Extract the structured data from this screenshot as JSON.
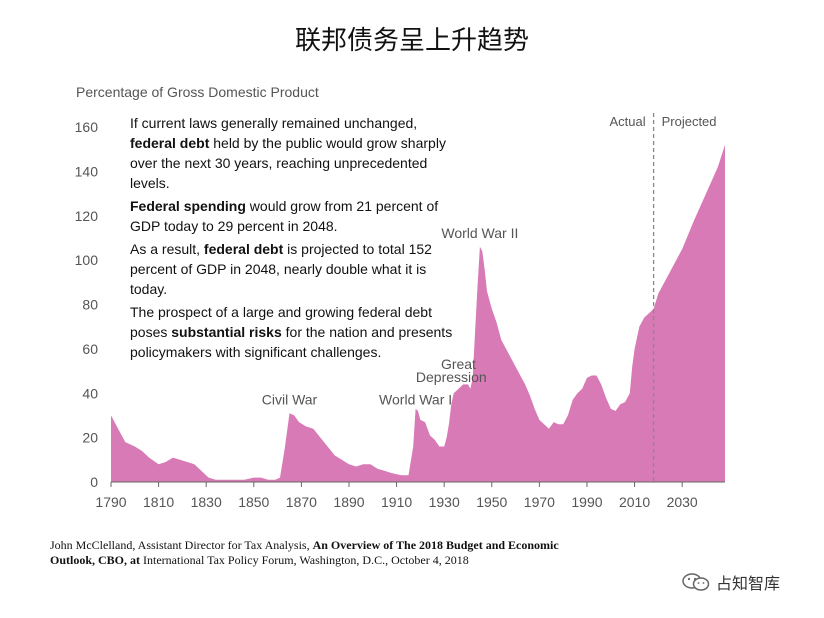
{
  "page_title": "联邦债务呈上升趋势",
  "chart_data": {
    "type": "area",
    "ylabel": "Percentage of Gross Domestic Product",
    "ylim": [
      0,
      160
    ],
    "xlim": [
      1790,
      2048
    ],
    "yticks": [
      0,
      20,
      40,
      60,
      80,
      100,
      120,
      140,
      160
    ],
    "xticks": [
      1790,
      1810,
      1830,
      1850,
      1870,
      1890,
      1910,
      1930,
      1950,
      1970,
      1990,
      2010,
      2030
    ],
    "color": "#d87ab6",
    "divider_year": 2018,
    "divider_labels": {
      "left": "Actual",
      "right": "Projected"
    },
    "annotations": [
      {
        "text": "Civil War",
        "x": 1865,
        "y": 35
      },
      {
        "text": "World War I",
        "x": 1918,
        "y": 35
      },
      {
        "text": "Great",
        "x": 1936,
        "y": 51
      },
      {
        "text": "Depression",
        "x": 1933,
        "y": 45
      },
      {
        "text": "World War II",
        "x": 1945,
        "y": 110
      }
    ],
    "x": [
      1790,
      1793,
      1796,
      1800,
      1803,
      1806,
      1810,
      1813,
      1816,
      1819,
      1822,
      1825,
      1828,
      1831,
      1834,
      1837,
      1840,
      1843,
      1846,
      1850,
      1853,
      1856,
      1859,
      1861,
      1863,
      1865,
      1867,
      1869,
      1872,
      1875,
      1878,
      1881,
      1884,
      1887,
      1890,
      1893,
      1896,
      1899,
      1902,
      1905,
      1908,
      1912,
      1915,
      1917,
      1918,
      1919,
      1920,
      1922,
      1924,
      1926,
      1928,
      1929,
      1930,
      1931,
      1932,
      1933,
      1934,
      1936,
      1938,
      1940,
      1941,
      1942,
      1943,
      1944,
      1945,
      1946,
      1947,
      1948,
      1950,
      1952,
      1954,
      1956,
      1958,
      1960,
      1962,
      1964,
      1966,
      1968,
      1970,
      1972,
      1974,
      1976,
      1978,
      1980,
      1982,
      1984,
      1986,
      1988,
      1990,
      1992,
      1994,
      1996,
      1998,
      2000,
      2002,
      2004,
      2006,
      2008,
      2009,
      2010,
      2012,
      2014,
      2016,
      2018,
      2020,
      2025,
      2030,
      2035,
      2040,
      2045,
      2048
    ],
    "values": [
      30,
      24,
      18,
      16,
      14,
      11,
      8,
      9,
      11,
      10,
      9,
      8,
      5,
      2,
      1,
      1,
      1,
      1,
      1,
      2,
      2,
      1,
      1,
      2,
      15,
      31,
      30,
      27,
      25,
      24,
      20,
      16,
      12,
      10,
      8,
      7,
      8,
      8,
      6,
      5,
      4,
      3,
      3,
      16,
      33,
      32,
      28,
      27,
      21,
      19,
      16,
      16,
      16,
      20,
      26,
      35,
      40,
      42,
      44,
      44,
      42,
      47,
      68,
      88,
      106,
      104,
      96,
      86,
      78,
      72,
      64,
      60,
      56,
      52,
      48,
      44,
      39,
      33,
      28,
      26,
      24,
      27,
      26,
      26,
      30,
      37,
      40,
      42,
      47,
      48,
      48,
      44,
      38,
      33,
      32,
      35,
      36,
      40,
      52,
      60,
      70,
      74,
      76,
      78,
      85,
      95,
      105,
      118,
      130,
      142,
      152
    ]
  },
  "annotation_paragraphs": [
    [
      {
        "t": "If current laws generally remained unchanged, ",
        "b": false
      },
      {
        "t": "federal debt",
        "b": true
      },
      {
        "t": " held by the public would grow sharply over the next 30 years, reaching unprecedented levels.",
        "b": false
      }
    ],
    [
      {
        "t": "Federal spending",
        "b": true
      },
      {
        "t": " would grow from 21 percent of GDP today to 29 percent in 2048.",
        "b": false
      }
    ],
    [
      {
        "t": "As a result, ",
        "b": false
      },
      {
        "t": "federal debt",
        "b": true
      },
      {
        "t": " is projected to total 152 percent of GDP in 2048, nearly double what it is today.",
        "b": false
      }
    ],
    [
      {
        "t": "The prospect of a large and growing federal debt poses ",
        "b": false
      },
      {
        "t": "substantial risks",
        "b": true
      },
      {
        "t": " for the nation and presents policymakers with significant challenges.",
        "b": false
      }
    ]
  ],
  "source": [
    {
      "t": "John McClelland, Assistant Director for Tax Analysis, ",
      "b": false
    },
    {
      "t": "An Overview of The 2018 Budget and Economic Outlook, CBO, at",
      "b": true
    },
    {
      "t": " International Tax Policy Forum, Washington, D.C., October 4, 2018",
      "b": false
    }
  ],
  "watermark": {
    "text": "占知智库",
    "icon": "wechat-icon"
  }
}
